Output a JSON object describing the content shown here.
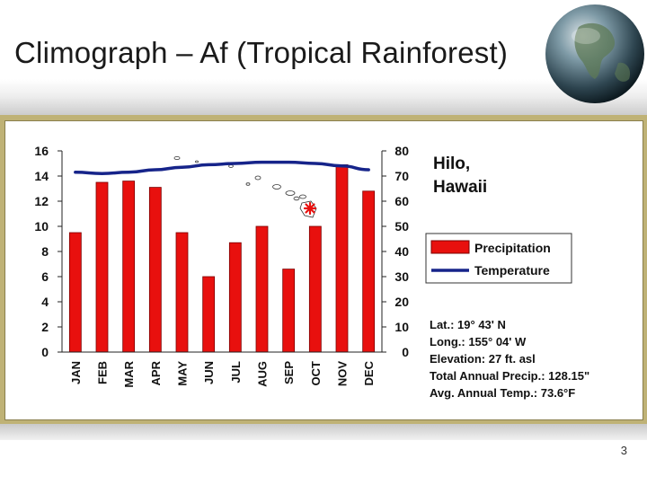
{
  "slide": {
    "title": "Climograph – Af (Tropical Rainforest)",
    "page_number": "3"
  },
  "colors": {
    "bar": "#e8100e",
    "bar_stroke": "#7a0000",
    "temperature_line": "#16248a",
    "frame": "#bfb276"
  },
  "chart_data": {
    "type": "bar",
    "title": "",
    "categories": [
      "JAN",
      "FEB",
      "MAR",
      "APR",
      "MAY",
      "JUN",
      "JUL",
      "AUG",
      "SEP",
      "OCT",
      "NOV",
      "DEC"
    ],
    "series": [
      {
        "name": "Precipitation",
        "type": "bar",
        "axis": "left",
        "values": [
          9.5,
          13.5,
          13.6,
          13.1,
          9.5,
          6.0,
          8.7,
          10.0,
          6.6,
          10.0,
          14.9,
          12.8
        ]
      },
      {
        "name": "Temperature",
        "type": "line",
        "axis": "right",
        "values": [
          71.5,
          71.0,
          71.5,
          72.5,
          73.5,
          74.5,
          75.0,
          75.5,
          75.5,
          75.0,
          74.0,
          72.5
        ]
      }
    ],
    "left_axis": {
      "label": "",
      "ylim": [
        0,
        16
      ],
      "ticks": [
        "0",
        "2",
        "4",
        "6",
        "8",
        "10",
        "12",
        "14",
        "16"
      ]
    },
    "right_axis": {
      "label": "",
      "ylim": [
        0,
        80
      ],
      "ticks": [
        "0",
        "10",
        "20",
        "30",
        "40",
        "50",
        "60",
        "70",
        "80"
      ]
    },
    "grid": false,
    "legend_placement": "right"
  },
  "panel": {
    "place_line1": "Hilo,",
    "place_line2": "Hawaii",
    "legend": {
      "precip_label": "Precipitation",
      "temp_label": "Temperature"
    },
    "info": [
      "Lat.: 19° 43' N",
      "Long.: 155° 04' W",
      "Elevation: 27 ft. asl",
      "Total Annual Precip.: 128.15\"",
      "Avg. Annual Temp.: 73.6°F"
    ]
  }
}
